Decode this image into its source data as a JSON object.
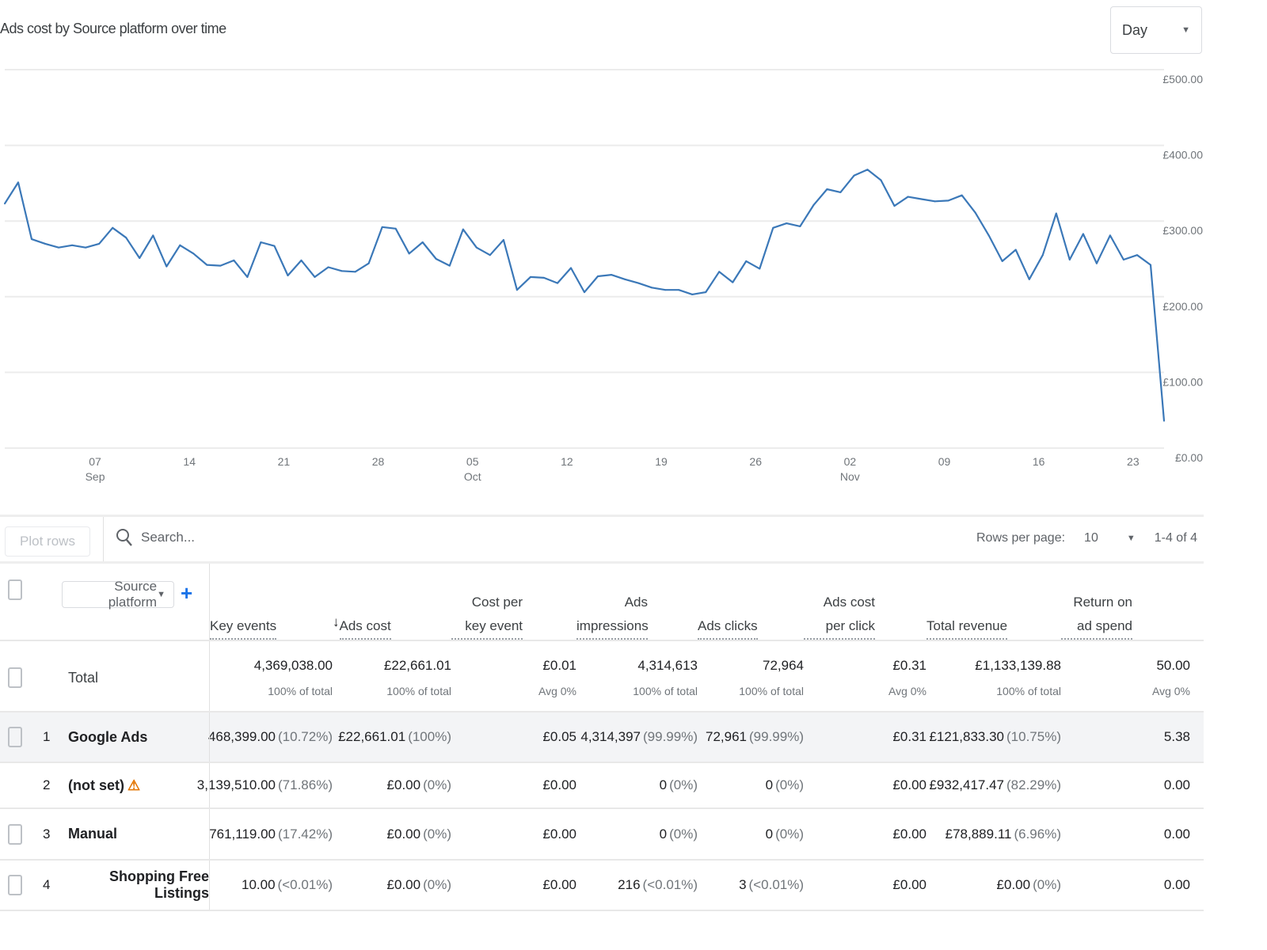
{
  "header": {
    "title": "Ads cost by Source platform over time",
    "granularity": "Day"
  },
  "chart_data": {
    "type": "line",
    "title": "Ads cost by Source platform over time",
    "xlabel": "",
    "ylabel": "Ads cost",
    "ylim": [
      0,
      500
    ],
    "yticks": [
      "£0.00",
      "£100.00",
      "£200.00",
      "£300.00",
      "£400.00",
      "£500.00"
    ],
    "xticks": [
      {
        "day": "07",
        "month": "Sep",
        "idx": 6.7
      },
      {
        "day": "14",
        "idx": 13.7
      },
      {
        "day": "21",
        "idx": 20.7
      },
      {
        "day": "28",
        "idx": 27.7
      },
      {
        "day": "05",
        "month": "Oct",
        "idx": 34.7
      },
      {
        "day": "12",
        "idx": 41.7
      },
      {
        "day": "19",
        "idx": 48.7
      },
      {
        "day": "26",
        "idx": 55.7
      },
      {
        "day": "02",
        "month": "Nov",
        "idx": 62.7
      },
      {
        "day": "09",
        "idx": 69.7
      },
      {
        "day": "16",
        "idx": 76.7
      },
      {
        "day": "23",
        "idx": 83.7
      }
    ],
    "grid": true,
    "series": [
      {
        "name": "Ads cost",
        "color": "#3b78b8",
        "values": [
          323,
          351,
          276,
          270,
          265,
          268,
          265,
          270,
          291,
          278,
          251,
          281,
          240,
          268,
          257,
          242,
          241,
          248,
          226,
          272,
          267,
          228,
          248,
          226,
          239,
          234,
          233,
          244,
          292,
          290,
          257,
          272,
          250,
          241,
          289,
          265,
          255,
          275,
          209,
          226,
          225,
          218,
          238,
          206,
          227,
          229,
          223,
          218,
          212,
          209,
          209,
          203,
          206,
          233,
          219,
          247,
          237,
          291,
          297,
          293,
          321,
          342,
          338,
          360,
          368,
          354,
          320,
          332,
          329,
          326,
          327,
          334,
          311,
          281,
          247,
          262,
          223,
          255,
          310,
          249,
          283,
          244,
          281,
          249,
          255,
          242,
          36
        ]
      }
    ]
  },
  "toolbar": {
    "plot_rows": "Plot rows",
    "search_placeholder": "Search...",
    "rows_per_page_label": "Rows per page:",
    "rows_per_page": "10",
    "range": "1-4 of 4"
  },
  "table": {
    "dimension": "Source platform",
    "headers": [
      "Key events",
      "Ads cost",
      "Cost per key event",
      "Ads impressions",
      "Ads clicks",
      "Ads cost per click",
      "Total revenue",
      "Return on ad spend"
    ],
    "total": {
      "label": "Total",
      "values": [
        "4,369,038.00",
        "£22,661.01",
        "£0.01",
        "4,314,613",
        "72,964",
        "£0.31",
        "£1,133,139.88",
        "50.00"
      ],
      "subs": [
        "100% of total",
        "100% of total",
        "Avg 0%",
        "100% of total",
        "100% of total",
        "Avg 0%",
        "100% of total",
        "Avg 0%"
      ]
    },
    "rows": [
      {
        "num": "1",
        "name": "Google Ads",
        "cells": [
          [
            "468,399.00",
            "(10.72%)"
          ],
          [
            "£22,661.01",
            "(100%)"
          ],
          [
            "£0.05",
            ""
          ],
          [
            "4,314,397",
            "(99.99%)"
          ],
          [
            "72,961",
            "(99.99%)"
          ],
          [
            "£0.31",
            ""
          ],
          [
            "£121,833.30",
            "(10.75%)"
          ],
          [
            "5.38",
            ""
          ]
        ]
      },
      {
        "num": "2",
        "name": "(not set)",
        "cells": [
          [
            "3,139,510.00",
            "(71.86%)"
          ],
          [
            "£0.00",
            "(0%)"
          ],
          [
            "£0.00",
            ""
          ],
          [
            "0",
            "(0%)"
          ],
          [
            "0",
            "(0%)"
          ],
          [
            "£0.00",
            ""
          ],
          [
            "£932,417.47",
            "(82.29%)"
          ],
          [
            "0.00",
            ""
          ]
        ]
      },
      {
        "num": "3",
        "name": "Manual",
        "cells": [
          [
            "761,119.00",
            "(17.42%)"
          ],
          [
            "£0.00",
            "(0%)"
          ],
          [
            "£0.00",
            ""
          ],
          [
            "0",
            "(0%)"
          ],
          [
            "0",
            "(0%)"
          ],
          [
            "£0.00",
            ""
          ],
          [
            "£78,889.11",
            "(6.96%)"
          ],
          [
            "0.00",
            ""
          ]
        ]
      },
      {
        "num": "4",
        "name": "Shopping Free Listings",
        "cells": [
          [
            "10.00",
            "(<0.01%)"
          ],
          [
            "£0.00",
            "(0%)"
          ],
          [
            "£0.00",
            ""
          ],
          [
            "216",
            "(<0.01%)"
          ],
          [
            "3",
            "(<0.01%)"
          ],
          [
            "£0.00",
            ""
          ],
          [
            "£0.00",
            "(0%)"
          ],
          [
            "0.00",
            ""
          ]
        ]
      }
    ]
  }
}
